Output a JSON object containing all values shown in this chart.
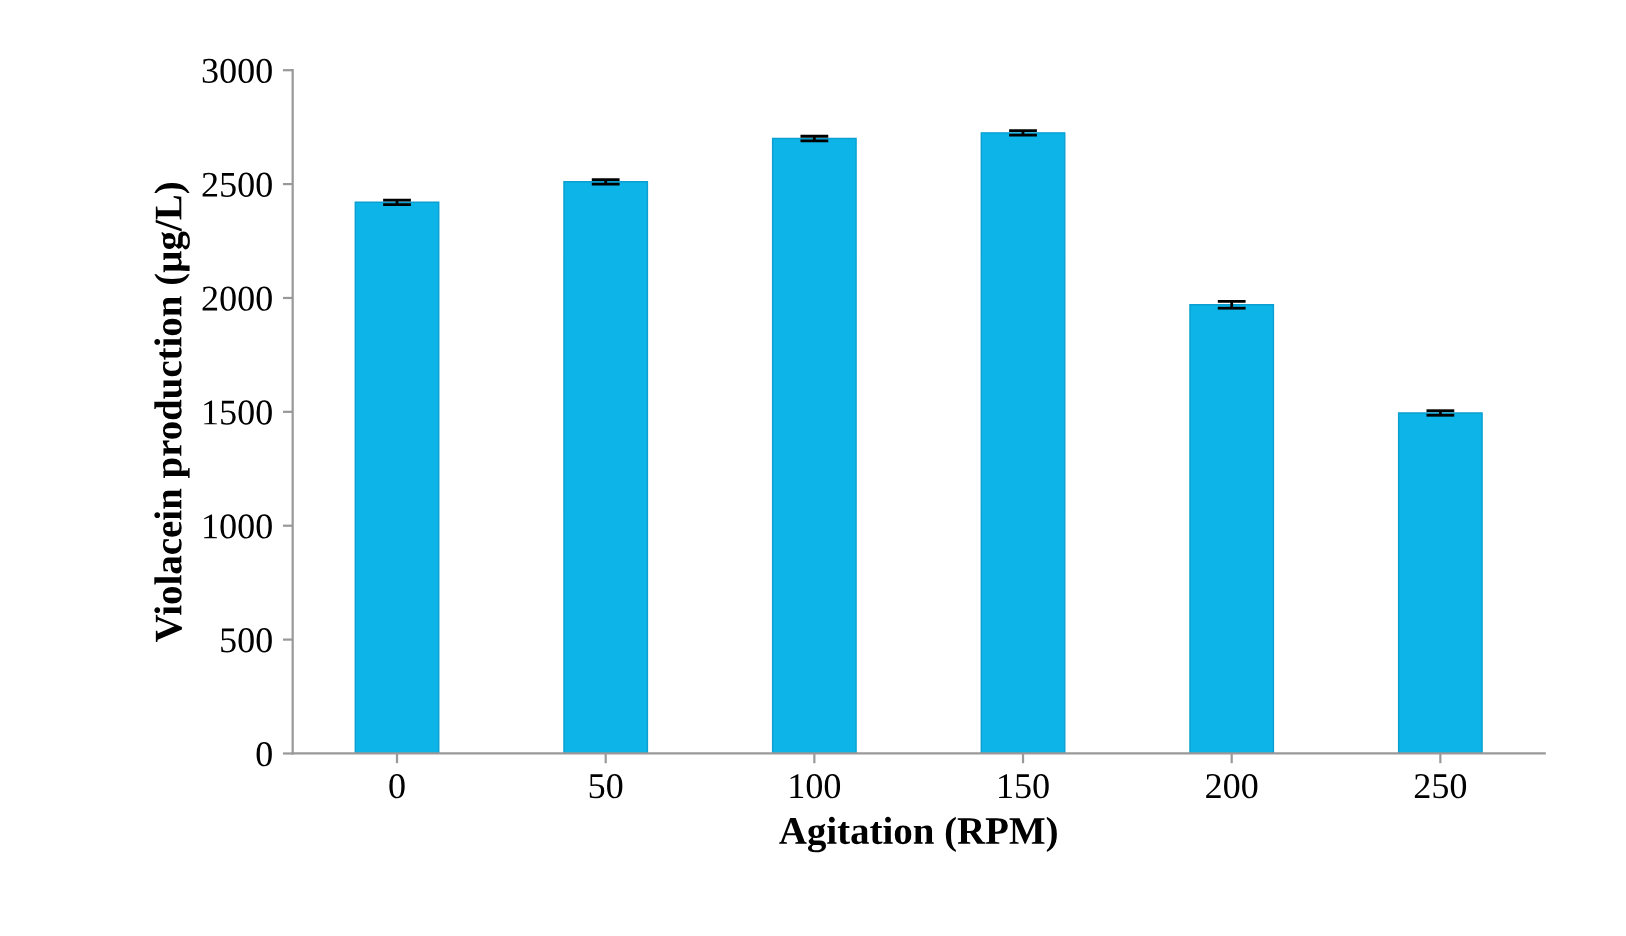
{
  "chart_data": {
    "type": "bar",
    "xlabel": "Agitation (RPM)",
    "ylabel": "Violacein production (µg/L)",
    "categories": [
      "0",
      "50",
      "100",
      "150",
      "200",
      "250"
    ],
    "values": [
      2420,
      2510,
      2700,
      2725,
      1970,
      1495
    ],
    "errors": [
      10,
      10,
      10,
      10,
      15,
      10
    ],
    "color": "#0cb4e8",
    "ylim": [
      0,
      3000
    ],
    "yticks": [
      0,
      500,
      1000,
      1500,
      2000,
      2500,
      3000
    ],
    "grid": false
  }
}
